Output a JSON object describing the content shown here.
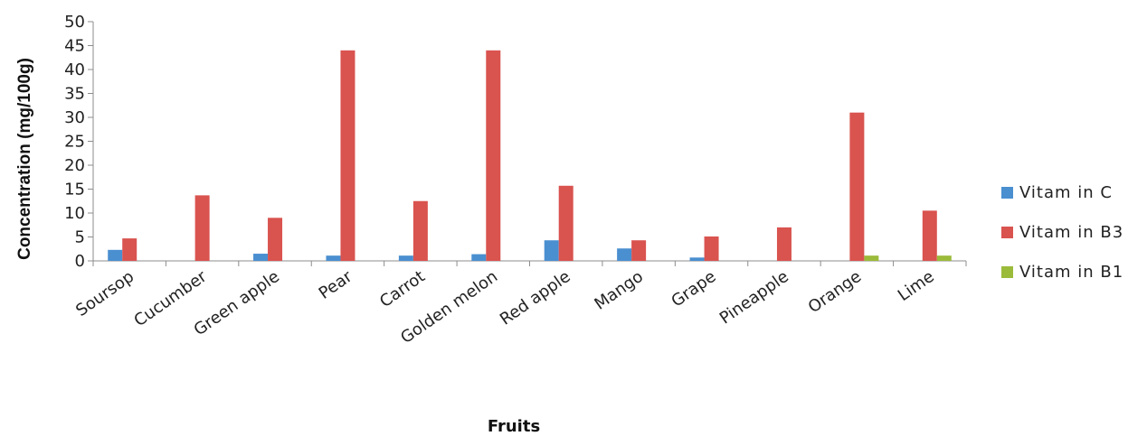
{
  "chart_data": {
    "type": "bar",
    "ylabel": "Concentration (mg/100g)",
    "xlabel": "Fruits",
    "ylim": [
      0,
      50
    ],
    "yticks": [
      0,
      5,
      10,
      15,
      20,
      25,
      30,
      35,
      40,
      45,
      50
    ],
    "grid": false,
    "legend_position": "right",
    "categories": [
      "Soursop",
      "Cucumber",
      "Green apple",
      "Pear",
      "Carrot",
      "Golden melon",
      "Red apple",
      "Mango",
      "Grape",
      "Pineapple",
      "Orange",
      "Lime"
    ],
    "series": [
      {
        "name": "Vitam in C",
        "color": "#4a8fd0",
        "values": [
          2.3,
          0,
          1.5,
          1.1,
          1.1,
          1.4,
          4.3,
          2.6,
          0.7,
          0,
          0,
          0
        ]
      },
      {
        "name": "Vitam in B3",
        "color": "#d9534f",
        "values": [
          4.7,
          13.7,
          9.0,
          44.0,
          12.5,
          44.0,
          15.7,
          4.3,
          5.1,
          7.0,
          31.0,
          10.5
        ]
      },
      {
        "name": "Vitam in B1",
        "color": "#9bbb3b",
        "values": [
          0,
          0,
          0,
          0,
          0,
          0,
          0,
          0,
          0,
          0,
          1.1,
          1.1
        ]
      }
    ]
  }
}
